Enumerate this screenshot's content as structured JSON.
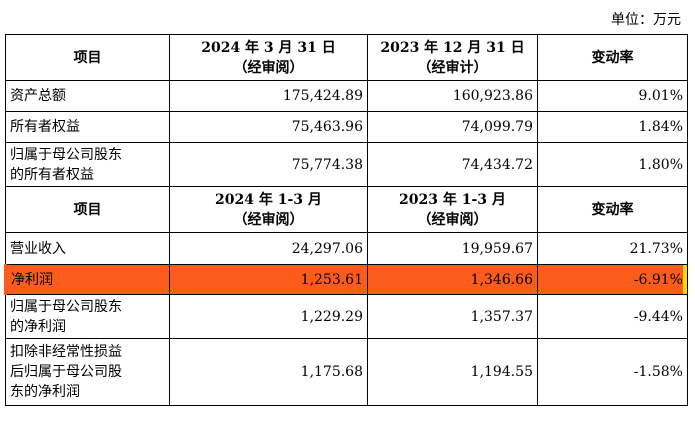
{
  "unit": "单位：万元",
  "header1": {
    "item": "项目",
    "col1_l1": "2024 年 3 月 31 日",
    "col1_l2": "（经审阅）",
    "col2_l1": "2023 年 12 月 31 日",
    "col2_l2": "（经审计）",
    "col3": "变动率"
  },
  "balance_rows": [
    {
      "label_l1": "资产总额",
      "label_l2": "",
      "v1": "175,424.89",
      "v2": "160,923.86",
      "rate": "9.01%"
    },
    {
      "label_l1": "所有者权益",
      "label_l2": "",
      "v1": "75,463.96",
      "v2": "74,099.79",
      "rate": "1.84%"
    },
    {
      "label_l1": "归属于母公司股东",
      "label_l2": "的所有者权益",
      "v1": "75,774.38",
      "v2": "74,434.72",
      "rate": "1.80%"
    }
  ],
  "header2": {
    "item": "项目",
    "col1_l1": "2024 年 1-3 月",
    "col1_l2": "（经审阅）",
    "col2_l1": "2023 年 1-3 月",
    "col2_l2": "（经审阅）",
    "col3": "变动率"
  },
  "income_rows": [
    {
      "label_l1": "营业收入",
      "label_l2": "",
      "label_l3": "",
      "v1": "24,297.06",
      "v2": "19,959.67",
      "rate": "21.73%"
    },
    {
      "label_l1": "净利润",
      "label_l2": "",
      "label_l3": "",
      "v1": "1,253.61",
      "v2": "1,346.66",
      "rate": "-6.91%"
    },
    {
      "label_l1": "归属于母公司股东",
      "label_l2": "的净利润",
      "label_l3": "",
      "v1": "1,229.29",
      "v2": "1,357.37",
      "rate": "-9.44%"
    },
    {
      "label_l1": "扣除非经常性损益",
      "label_l2": "后归属于母公司股",
      "label_l3": "东的净利润",
      "v1": "1,175.68",
      "v2": "1,194.55",
      "rate": "-1.58%"
    }
  ],
  "colors": {
    "highlight": "#fb5c1c",
    "edge_mark": "#ffd800"
  }
}
